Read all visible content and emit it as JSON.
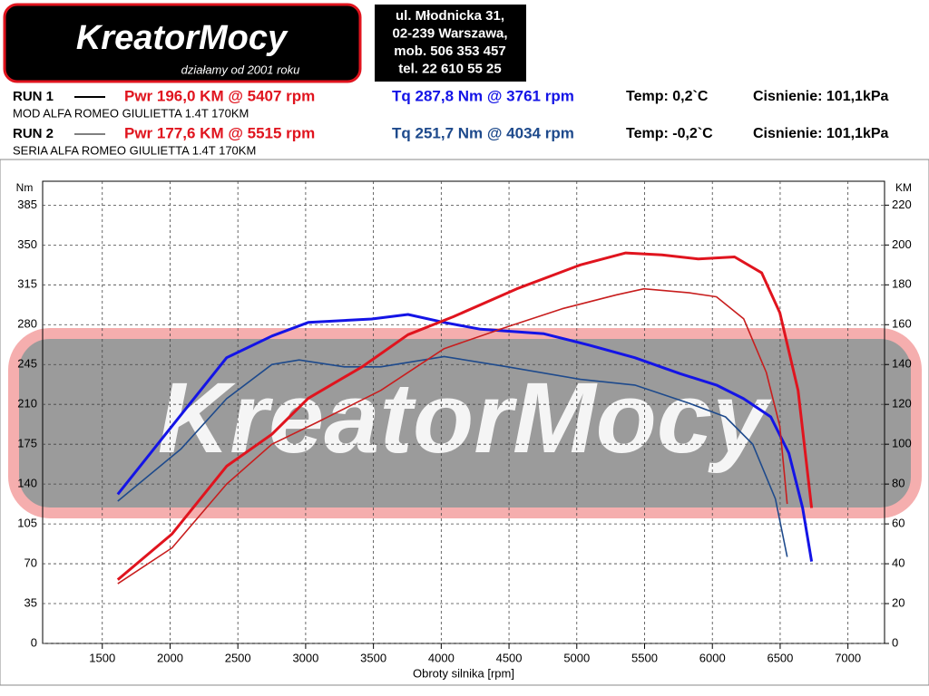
{
  "header": {
    "logo": "KreatorMocy",
    "slogan": "działamy od 2001 roku",
    "address": [
      "ul. Młodnicka 31,",
      "02-239  Warszawa,",
      "mob.  506 353 457",
      "tel.  22 610 55 25"
    ]
  },
  "runs": [
    {
      "label": "RUN 1",
      "pwr": "Pwr  196,0 KM @ 5407 rpm",
      "tq": "Tq 287,8 Nm @ 3761 rpm",
      "temp": "Temp: 0,2`C",
      "pressure": "Cisnienie: 101,1kPa",
      "description": "MOD ALFA ROMEO GIULIETTA 1.4T 170KM"
    },
    {
      "label": "RUN 2",
      "pwr": "Pwr  177,6 KM @ 5515 rpm",
      "tq": "Tq 251,7 Nm @ 4034 rpm",
      "temp": "Temp: -0,2`C",
      "pressure": "Cisnienie: 101,1kPa",
      "description": "SERIA  ALFA ROMEO GIULIETTA 1.4T 170KM"
    }
  ],
  "chart_data": {
    "type": "line",
    "xlabel": "Obroty silnika [rpm]",
    "ylabel": "Nm",
    "y2label": "KM",
    "watermark": "KreatorMocy",
    "xlim": [
      1060,
      7270
    ],
    "xticks": [
      1500,
      2000,
      2500,
      3000,
      3500,
      4000,
      4500,
      5000,
      5500,
      6000,
      6500,
      7000
    ],
    "ylim": [
      0,
      406
    ],
    "yticks": [
      0,
      35,
      70,
      105,
      140,
      175,
      210,
      245,
      280,
      315,
      350,
      385
    ],
    "y2lim": [
      0,
      232
    ],
    "y2ticks": [
      0,
      20,
      40,
      60,
      80,
      100,
      120,
      140,
      160,
      180,
      200,
      220
    ],
    "grid": true,
    "series": [
      {
        "color": "#1414e6",
        "line_width": 3,
        "axis": "y",
        "x": [
          1614,
          2015,
          2417,
          2751,
          3019,
          3487,
          3755,
          4022,
          4290,
          4758,
          5093,
          5428,
          5762,
          6030,
          6230,
          6431,
          6565,
          6666,
          6732
        ],
        "values": [
          131,
          191,
          251,
          270,
          282,
          285,
          289,
          282,
          276,
          272,
          262,
          251,
          237,
          227,
          215,
          199,
          167,
          119,
          72
        ]
      },
      {
        "color": "#1e4a8c",
        "line_width": 1.6,
        "axis": "y",
        "x": [
          1614,
          2082,
          2417,
          2751,
          2952,
          3286,
          3554,
          4022,
          4490,
          5026,
          5428,
          5829,
          6097,
          6298,
          6465,
          6552
        ],
        "values": [
          125,
          171,
          215,
          245,
          249,
          243,
          243,
          252,
          243,
          232,
          227,
          211,
          199,
          175,
          127,
          76
        ]
      },
      {
        "color": "#e0141e",
        "line_width": 3,
        "axis": "y2",
        "x": [
          1614,
          2015,
          2417,
          2751,
          3019,
          3420,
          3755,
          4089,
          4557,
          5026,
          5361,
          5628,
          5896,
          6164,
          6364,
          6498,
          6632,
          6732
        ],
        "values": [
          32,
          55,
          89,
          105,
          123,
          139,
          155,
          164,
          178,
          190,
          196,
          195,
          193,
          194,
          186,
          166,
          127,
          68
        ]
      },
      {
        "color": "#c81e1e",
        "line_width": 1.6,
        "axis": "y2",
        "x": [
          1614,
          2015,
          2417,
          2751,
          3085,
          3554,
          4022,
          4490,
          4892,
          5294,
          5495,
          5829,
          6030,
          6231,
          6398,
          6498,
          6552
        ],
        "values": [
          30,
          48,
          80,
          100,
          111,
          127,
          148,
          159,
          168,
          175,
          178,
          176,
          174,
          163,
          136,
          109,
          70
        ]
      }
    ]
  }
}
